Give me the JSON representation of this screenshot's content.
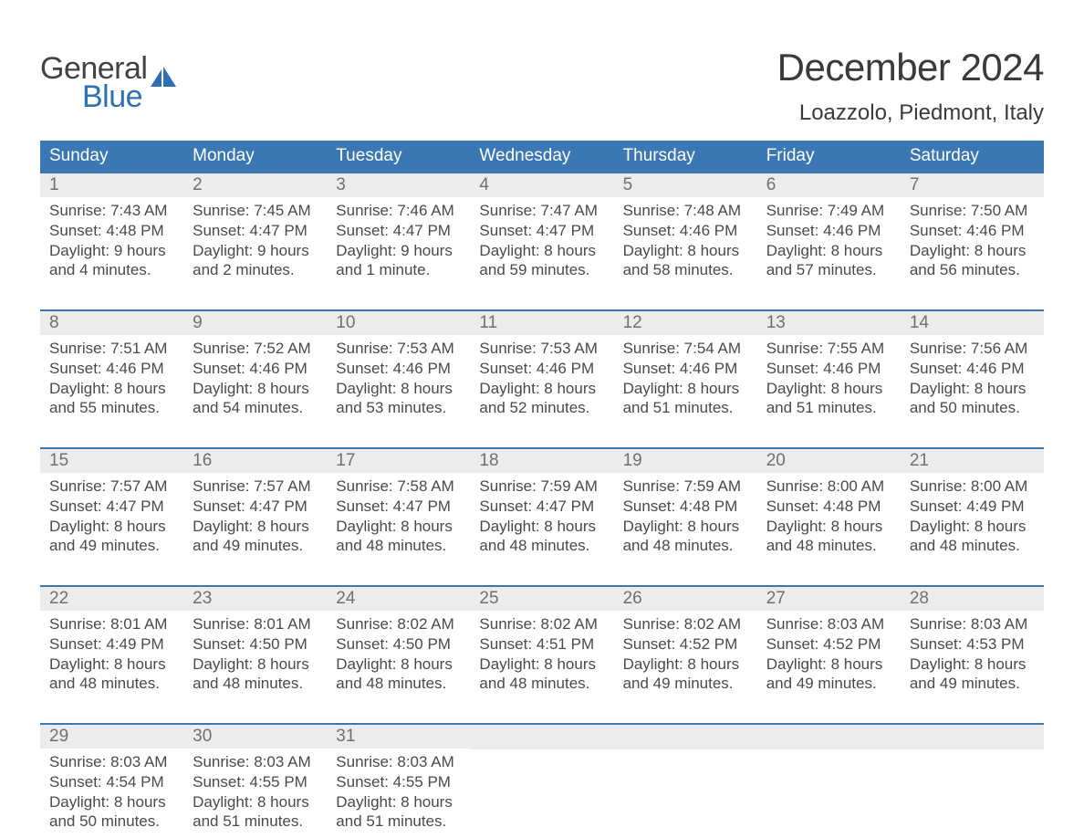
{
  "logo": {
    "word1": "General",
    "word2": "Blue",
    "word1_color": "#424242",
    "word2_color": "#2f6fb2",
    "sail_color": "#2f6fb2"
  },
  "title": {
    "month_year": "December 2024",
    "location": "Loazzolo, Piedmont, Italy"
  },
  "style": {
    "header_bg": "#3b77b3",
    "header_text": "#ffffff",
    "week_divider": "#3b77b3",
    "daynum_bg": "#ececec",
    "daynum_color": "#707070",
    "body_text": "#4a4a4a",
    "page_bg": "#ffffff",
    "title_color": "#3a3a3a",
    "month_fontsize": 42,
    "location_fontsize": 24,
    "weekday_fontsize": 19,
    "daynum_fontsize": 19,
    "body_fontsize": 17
  },
  "weekdays": [
    "Sunday",
    "Monday",
    "Tuesday",
    "Wednesday",
    "Thursday",
    "Friday",
    "Saturday"
  ],
  "labels": {
    "sunrise": "Sunrise:",
    "sunset": "Sunset:",
    "daylight": "Daylight:"
  },
  "weeks": [
    [
      {
        "day": "1",
        "sunrise": "7:43 AM",
        "sunset": "4:48 PM",
        "daylight": "9 hours and 4 minutes."
      },
      {
        "day": "2",
        "sunrise": "7:45 AM",
        "sunset": "4:47 PM",
        "daylight": "9 hours and 2 minutes."
      },
      {
        "day": "3",
        "sunrise": "7:46 AM",
        "sunset": "4:47 PM",
        "daylight": "9 hours and 1 minute."
      },
      {
        "day": "4",
        "sunrise": "7:47 AM",
        "sunset": "4:47 PM",
        "daylight": "8 hours and 59 minutes."
      },
      {
        "day": "5",
        "sunrise": "7:48 AM",
        "sunset": "4:46 PM",
        "daylight": "8 hours and 58 minutes."
      },
      {
        "day": "6",
        "sunrise": "7:49 AM",
        "sunset": "4:46 PM",
        "daylight": "8 hours and 57 minutes."
      },
      {
        "day": "7",
        "sunrise": "7:50 AM",
        "sunset": "4:46 PM",
        "daylight": "8 hours and 56 minutes."
      }
    ],
    [
      {
        "day": "8",
        "sunrise": "7:51 AM",
        "sunset": "4:46 PM",
        "daylight": "8 hours and 55 minutes."
      },
      {
        "day": "9",
        "sunrise": "7:52 AM",
        "sunset": "4:46 PM",
        "daylight": "8 hours and 54 minutes."
      },
      {
        "day": "10",
        "sunrise": "7:53 AM",
        "sunset": "4:46 PM",
        "daylight": "8 hours and 53 minutes."
      },
      {
        "day": "11",
        "sunrise": "7:53 AM",
        "sunset": "4:46 PM",
        "daylight": "8 hours and 52 minutes."
      },
      {
        "day": "12",
        "sunrise": "7:54 AM",
        "sunset": "4:46 PM",
        "daylight": "8 hours and 51 minutes."
      },
      {
        "day": "13",
        "sunrise": "7:55 AM",
        "sunset": "4:46 PM",
        "daylight": "8 hours and 51 minutes."
      },
      {
        "day": "14",
        "sunrise": "7:56 AM",
        "sunset": "4:46 PM",
        "daylight": "8 hours and 50 minutes."
      }
    ],
    [
      {
        "day": "15",
        "sunrise": "7:57 AM",
        "sunset": "4:47 PM",
        "daylight": "8 hours and 49 minutes."
      },
      {
        "day": "16",
        "sunrise": "7:57 AM",
        "sunset": "4:47 PM",
        "daylight": "8 hours and 49 minutes."
      },
      {
        "day": "17",
        "sunrise": "7:58 AM",
        "sunset": "4:47 PM",
        "daylight": "8 hours and 48 minutes."
      },
      {
        "day": "18",
        "sunrise": "7:59 AM",
        "sunset": "4:47 PM",
        "daylight": "8 hours and 48 minutes."
      },
      {
        "day": "19",
        "sunrise": "7:59 AM",
        "sunset": "4:48 PM",
        "daylight": "8 hours and 48 minutes."
      },
      {
        "day": "20",
        "sunrise": "8:00 AM",
        "sunset": "4:48 PM",
        "daylight": "8 hours and 48 minutes."
      },
      {
        "day": "21",
        "sunrise": "8:00 AM",
        "sunset": "4:49 PM",
        "daylight": "8 hours and 48 minutes."
      }
    ],
    [
      {
        "day": "22",
        "sunrise": "8:01 AM",
        "sunset": "4:49 PM",
        "daylight": "8 hours and 48 minutes."
      },
      {
        "day": "23",
        "sunrise": "8:01 AM",
        "sunset": "4:50 PM",
        "daylight": "8 hours and 48 minutes."
      },
      {
        "day": "24",
        "sunrise": "8:02 AM",
        "sunset": "4:50 PM",
        "daylight": "8 hours and 48 minutes."
      },
      {
        "day": "25",
        "sunrise": "8:02 AM",
        "sunset": "4:51 PM",
        "daylight": "8 hours and 48 minutes."
      },
      {
        "day": "26",
        "sunrise": "8:02 AM",
        "sunset": "4:52 PM",
        "daylight": "8 hours and 49 minutes."
      },
      {
        "day": "27",
        "sunrise": "8:03 AM",
        "sunset": "4:52 PM",
        "daylight": "8 hours and 49 minutes."
      },
      {
        "day": "28",
        "sunrise": "8:03 AM",
        "sunset": "4:53 PM",
        "daylight": "8 hours and 49 minutes."
      }
    ],
    [
      {
        "day": "29",
        "sunrise": "8:03 AM",
        "sunset": "4:54 PM",
        "daylight": "8 hours and 50 minutes."
      },
      {
        "day": "30",
        "sunrise": "8:03 AM",
        "sunset": "4:55 PM",
        "daylight": "8 hours and 51 minutes."
      },
      {
        "day": "31",
        "sunrise": "8:03 AM",
        "sunset": "4:55 PM",
        "daylight": "8 hours and 51 minutes."
      },
      null,
      null,
      null,
      null
    ]
  ]
}
